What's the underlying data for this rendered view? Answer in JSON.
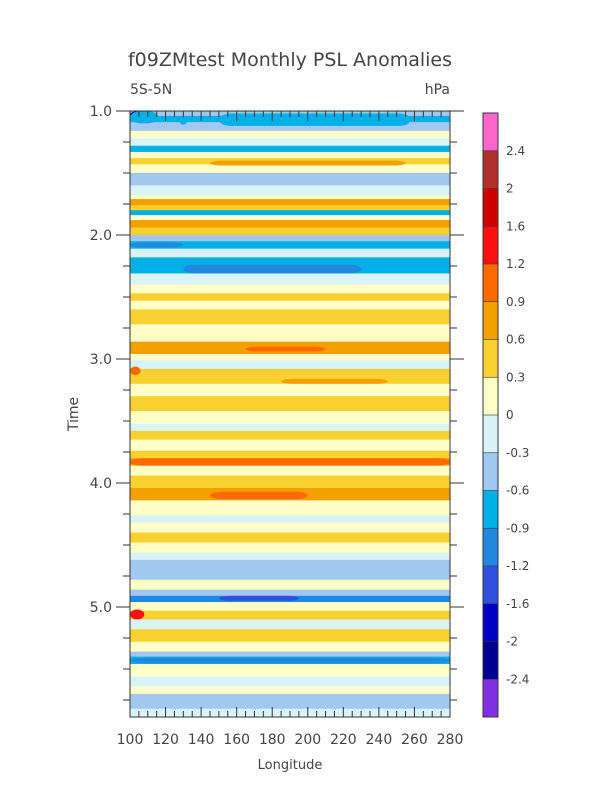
{
  "chart_data": {
    "type": "heatmap",
    "title": "f09ZMtest Monthly PSL Anomalies",
    "left_label": "5S-5N",
    "right_label": "hPa",
    "xlabel": "Longitude",
    "ylabel": "Time",
    "xlim": [
      100,
      280
    ],
    "ylim": [
      1.0,
      5.92
    ],
    "x_ticks": [
      "100",
      "120",
      "140",
      "160",
      "180",
      "200",
      "220",
      "240",
      "260",
      "280"
    ],
    "y_ticks": [
      "1.0",
      "2.0",
      "3.0",
      "4.0",
      "5.0"
    ],
    "y_tick_values": [
      1.0,
      2.0,
      3.0,
      4.0,
      5.0
    ],
    "colorbar": {
      "levels": [
        "2.4",
        "2",
        "1.6",
        "1.2",
        "0.9",
        "0.6",
        "0.3",
        "0",
        "-0.3",
        "-0.6",
        "-0.9",
        "-1.2",
        "-1.6",
        "-2",
        "-2.4"
      ],
      "colors": [
        "#ff66cc",
        "#b03030",
        "#d00000",
        "#ff1010",
        "#ff6a00",
        "#f4a000",
        "#f8d030",
        "#ffffc8",
        "#d8f4f8",
        "#a0c8f0",
        "#00b0e8",
        "#2088e0",
        "#3050e0",
        "#0000c8",
        "#000090",
        "#8030e0"
      ]
    },
    "bands": [
      {
        "t0": 1.0,
        "t1": 1.04,
        "v": -0.45
      },
      {
        "t0": 1.04,
        "t1": 1.09,
        "v": -0.7
      },
      {
        "t0": 1.09,
        "t1": 1.16,
        "v": -0.45
      },
      {
        "t0": 1.16,
        "t1": 1.22,
        "v": 0.15
      },
      {
        "t0": 1.22,
        "t1": 1.28,
        "v": -0.15
      },
      {
        "t0": 1.28,
        "t1": 1.33,
        "v": -0.7
      },
      {
        "t0": 1.33,
        "t1": 1.38,
        "v": 0.15
      },
      {
        "t0": 1.38,
        "t1": 1.43,
        "v": 0.45
      },
      {
        "t0": 1.43,
        "t1": 1.5,
        "v": 0.15
      },
      {
        "t0": 1.5,
        "t1": 1.6,
        "v": -0.45
      },
      {
        "t0": 1.6,
        "t1": 1.68,
        "v": -0.15
      },
      {
        "t0": 1.68,
        "t1": 1.71,
        "v": 0.15
      },
      {
        "t0": 1.71,
        "t1": 1.76,
        "v": 0.75
      },
      {
        "t0": 1.76,
        "t1": 1.8,
        "v": 0.45
      },
      {
        "t0": 1.8,
        "t1": 1.84,
        "v": -0.8
      },
      {
        "t0": 1.84,
        "t1": 1.88,
        "v": 0.15
      },
      {
        "t0": 1.88,
        "t1": 1.94,
        "v": 0.75
      },
      {
        "t0": 1.94,
        "t1": 2.0,
        "v": 0.45
      },
      {
        "t0": 2.0,
        "t1": 2.05,
        "v": -0.45
      },
      {
        "t0": 2.05,
        "t1": 2.11,
        "v": -0.8
      },
      {
        "t0": 2.11,
        "t1": 2.18,
        "v": -0.15
      },
      {
        "t0": 2.18,
        "t1": 2.31,
        "v": -0.6
      },
      {
        "t0": 2.31,
        "t1": 2.4,
        "v": -0.15
      },
      {
        "t0": 2.4,
        "t1": 2.47,
        "v": 0.15
      },
      {
        "t0": 2.47,
        "t1": 2.53,
        "v": 0.45
      },
      {
        "t0": 2.53,
        "t1": 2.6,
        "v": 0.15
      },
      {
        "t0": 2.6,
        "t1": 2.72,
        "v": 0.45
      },
      {
        "t0": 2.72,
        "t1": 2.86,
        "v": 0.15
      },
      {
        "t0": 2.86,
        "t1": 2.96,
        "v": 0.75
      },
      {
        "t0": 2.96,
        "t1": 3.01,
        "v": 0.15
      },
      {
        "t0": 3.01,
        "t1": 3.08,
        "v": -0.15
      },
      {
        "t0": 3.08,
        "t1": 3.2,
        "v": 0.45
      },
      {
        "t0": 3.2,
        "t1": 3.3,
        "v": 0.15
      },
      {
        "t0": 3.3,
        "t1": 3.42,
        "v": 0.45
      },
      {
        "t0": 3.42,
        "t1": 3.52,
        "v": 0.15
      },
      {
        "t0": 3.52,
        "t1": 3.58,
        "v": -0.15
      },
      {
        "t0": 3.58,
        "t1": 3.65,
        "v": 0.45
      },
      {
        "t0": 3.65,
        "t1": 3.74,
        "v": 0.15
      },
      {
        "t0": 3.74,
        "t1": 3.8,
        "v": 0.45
      },
      {
        "t0": 3.8,
        "t1": 3.86,
        "v": 0.9
      },
      {
        "t0": 3.86,
        "t1": 3.94,
        "v": 0.15
      },
      {
        "t0": 3.94,
        "t1": 4.04,
        "v": 0.45
      },
      {
        "t0": 4.04,
        "t1": 4.14,
        "v": 0.75
      },
      {
        "t0": 4.14,
        "t1": 4.26,
        "v": 0.15
      },
      {
        "t0": 4.26,
        "t1": 4.32,
        "v": -0.15
      },
      {
        "t0": 4.32,
        "t1": 4.4,
        "v": 0.15
      },
      {
        "t0": 4.4,
        "t1": 4.48,
        "v": 0.45
      },
      {
        "t0": 4.48,
        "t1": 4.56,
        "v": 0.15
      },
      {
        "t0": 4.56,
        "t1": 4.62,
        "v": -0.15
      },
      {
        "t0": 4.62,
        "t1": 4.78,
        "v": -0.45
      },
      {
        "t0": 4.78,
        "t1": 4.86,
        "v": 0.15
      },
      {
        "t0": 4.86,
        "t1": 4.91,
        "v": -0.45
      },
      {
        "t0": 4.91,
        "t1": 4.96,
        "v": -1.0
      },
      {
        "t0": 4.96,
        "t1": 5.03,
        "v": 0.15
      },
      {
        "t0": 5.03,
        "t1": 5.1,
        "v": 0.45
      },
      {
        "t0": 5.1,
        "t1": 5.18,
        "v": -0.15
      },
      {
        "t0": 5.18,
        "t1": 5.28,
        "v": 0.45
      },
      {
        "t0": 5.28,
        "t1": 5.36,
        "v": 0.15
      },
      {
        "t0": 5.36,
        "t1": 5.4,
        "v": -0.45
      },
      {
        "t0": 5.4,
        "t1": 5.46,
        "v": -0.8
      },
      {
        "t0": 5.46,
        "t1": 5.56,
        "v": 0.15
      },
      {
        "t0": 5.56,
        "t1": 5.64,
        "v": -0.15
      },
      {
        "t0": 5.64,
        "t1": 5.7,
        "v": 0.15
      },
      {
        "t0": 5.7,
        "t1": 5.82,
        "v": -0.45
      },
      {
        "t0": 5.82,
        "t1": 5.92,
        "v": -0.15
      }
    ],
    "blobs": [
      {
        "x0": 100,
        "x1": 110,
        "t0": 1.0,
        "t1": 1.06,
        "v": -2.0
      },
      {
        "x0": 100,
        "x1": 116,
        "t0": 1.0,
        "t1": 1.1,
        "v": -0.7
      },
      {
        "x0": 128,
        "x1": 132,
        "t0": 1.06,
        "t1": 1.11,
        "v": -0.7
      },
      {
        "x0": 150,
        "x1": 258,
        "t0": 1.02,
        "t1": 1.12,
        "v": -0.8
      },
      {
        "x0": 145,
        "x1": 255,
        "t0": 1.4,
        "t1": 1.44,
        "v": 0.75
      },
      {
        "x0": 200,
        "x1": 280,
        "t0": 1.72,
        "t1": 1.75,
        "v": 0.9
      },
      {
        "x0": 140,
        "x1": 280,
        "t0": 1.89,
        "t1": 1.93,
        "v": 0.9
      },
      {
        "x0": 100,
        "x1": 130,
        "t0": 2.06,
        "t1": 2.1,
        "v": -1.1
      },
      {
        "x0": 130,
        "x1": 230,
        "t0": 2.24,
        "t1": 2.31,
        "v": -0.9
      },
      {
        "x0": 140,
        "x1": 265,
        "t0": 2.88,
        "t1": 2.95,
        "v": 0.9
      },
      {
        "x0": 165,
        "x1": 210,
        "t0": 2.9,
        "t1": 2.94,
        "v": 1.0
      },
      {
        "x0": 100,
        "x1": 106,
        "t0": 3.06,
        "t1": 3.13,
        "v": 1.0
      },
      {
        "x0": 185,
        "x1": 245,
        "t0": 3.16,
        "t1": 3.2,
        "v": 0.9
      },
      {
        "x0": 100,
        "x1": 280,
        "t0": 3.8,
        "t1": 3.86,
        "v": 1.0
      },
      {
        "x0": 145,
        "x1": 200,
        "t0": 4.07,
        "t1": 4.13,
        "v": 1.0
      },
      {
        "x0": 225,
        "x1": 270,
        "t0": 4.07,
        "t1": 4.12,
        "v": 0.9
      },
      {
        "x0": 150,
        "x1": 195,
        "t0": 4.91,
        "t1": 4.95,
        "v": -1.4
      },
      {
        "x0": 100,
        "x1": 108,
        "t0": 5.02,
        "t1": 5.1,
        "v": 1.4
      },
      {
        "x0": 100,
        "x1": 280,
        "t0": 5.41,
        "t1": 5.45,
        "v": -1.0
      }
    ]
  }
}
